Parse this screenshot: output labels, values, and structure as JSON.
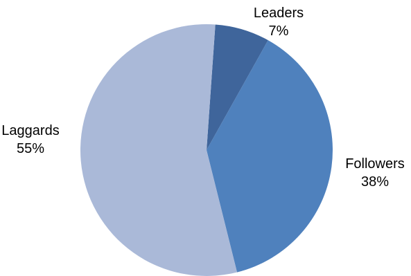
{
  "chart_data": {
    "type": "pie",
    "title": "",
    "start_angle_deg": 4,
    "slices": [
      {
        "label": "Leaders",
        "value": 7,
        "display": "7%",
        "color": "#3F659B"
      },
      {
        "label": "Followers",
        "value": 38,
        "display": "38%",
        "color": "#4F81BD"
      },
      {
        "label": "Laggards",
        "value": 55,
        "display": "55%",
        "color": "#AAB9D8"
      }
    ],
    "legend": "none",
    "label_position": "outside"
  }
}
